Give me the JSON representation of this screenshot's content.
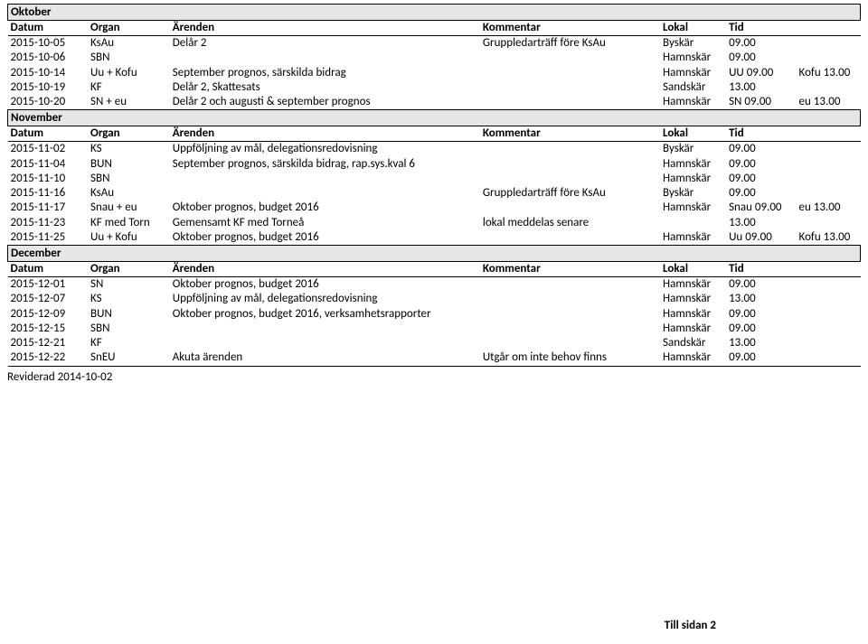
{
  "headers": {
    "datum": "Datum",
    "organ": "Organ",
    "arenden": "Ärenden",
    "kommentar": "Kommentar",
    "lokal": "Lokal",
    "tid": "Tid"
  },
  "months": [
    {
      "name": "Oktober",
      "rows": [
        {
          "datum": "2015-10-05",
          "organ": "KsAu",
          "arenden": "Delår 2",
          "kommentar": "Gruppledarträff före KsAu",
          "lokal": "Byskär",
          "tid": "09.00",
          "extra": ""
        },
        {
          "datum": "2015-10-06",
          "organ": "SBN",
          "arenden": "",
          "kommentar": "",
          "lokal": "Hamnskär",
          "tid": "09.00",
          "extra": ""
        },
        {
          "datum": "2015-10-14",
          "organ": "Uu + Kofu",
          "arenden": "September prognos, särskilda bidrag",
          "kommentar": "",
          "lokal": "Hamnskär",
          "tid": "UU 09.00",
          "extra": "Kofu 13.00"
        },
        {
          "datum": "2015-10-19",
          "organ": "KF",
          "arenden": "Delår 2, Skattesats",
          "kommentar": "",
          "lokal": "Sandskär",
          "tid": "13.00",
          "extra": ""
        },
        {
          "datum": "2015-10-20",
          "organ": "SN + eu",
          "arenden": "Delår 2 och augusti & september prognos",
          "kommentar": "",
          "lokal": "Hamnskär",
          "tid": "SN 09.00",
          "extra": "eu 13.00"
        }
      ]
    },
    {
      "name": "November",
      "rows": [
        {
          "datum": "2015-11-02",
          "organ": "KS",
          "arenden": "Uppföljning av mål, delegationsredovisning",
          "kommentar": "",
          "lokal": "Byskär",
          "tid": "09.00",
          "extra": ""
        },
        {
          "datum": "2015-11-04",
          "organ": "BUN",
          "arenden": "September prognos, särskilda bidrag, rap.sys.kval 6",
          "kommentar": "",
          "lokal": "Hamnskär",
          "tid": "09.00",
          "extra": ""
        },
        {
          "datum": "2015-11-10",
          "organ": "SBN",
          "arenden": "",
          "kommentar": "",
          "lokal": "Hamnskär",
          "tid": "09.00",
          "extra": ""
        },
        {
          "datum": "2015-11-16",
          "organ": "KsAu",
          "arenden": "",
          "kommentar": "Gruppledarträff före KsAu",
          "lokal": "Byskär",
          "tid": "09.00",
          "extra": ""
        },
        {
          "datum": "2015-11-17",
          "organ": "Snau + eu",
          "arenden": "Oktober prognos, budget 2016",
          "kommentar": "",
          "lokal": "Hamnskär",
          "tid": "Snau 09.00",
          "extra": "eu 13.00"
        },
        {
          "datum": "2015-11-23",
          "organ": "KF med Torn",
          "arenden": "Gemensamt KF med Torneå",
          "kommentar": "lokal meddelas senare",
          "lokal": "",
          "tid": "13.00",
          "extra": ""
        },
        {
          "datum": "2015-11-25",
          "organ": "Uu + Kofu",
          "arenden": "Oktober prognos, budget 2016",
          "kommentar": "",
          "lokal": "Hamnskär",
          "tid": "Uu 09.00",
          "extra": "Kofu 13.00"
        }
      ]
    },
    {
      "name": "December",
      "rows": [
        {
          "datum": "2015-12-01",
          "organ": "SN",
          "arenden": "Oktober prognos, budget 2016",
          "kommentar": "",
          "lokal": "Hamnskär",
          "tid": "09.00",
          "extra": ""
        },
        {
          "datum": "2015-12-07",
          "organ": "KS",
          "arenden": "Uppföljning av mål, delegationsredovisning",
          "kommentar": "",
          "lokal": "Hamnskär",
          "tid": "13.00",
          "extra": ""
        },
        {
          "datum": "2015-12-09",
          "organ": "BUN",
          "arenden": "Oktober prognos, budget 2016, verksamhetsrapporter",
          "kommentar": "",
          "lokal": "Hamnskär",
          "tid": "09.00",
          "extra": ""
        },
        {
          "datum": "2015-12-15",
          "organ": "SBN",
          "arenden": "",
          "kommentar": "",
          "lokal": "Hamnskär",
          "tid": "09.00",
          "extra": ""
        },
        {
          "datum": "2015-12-21",
          "organ": "KF",
          "arenden": "",
          "kommentar": "",
          "lokal": "Sandskär",
          "tid": "13.00",
          "extra": ""
        },
        {
          "datum": "2015-12-22",
          "organ": "SnEU",
          "arenden": "Akuta ärenden",
          "kommentar": "Utgår om inte behov finns",
          "lokal": "Hamnskär",
          "tid": "09.00",
          "extra": ""
        }
      ]
    }
  ],
  "revised": "Reviderad 2014-10-02",
  "pagefoot": "Till sidan 2"
}
